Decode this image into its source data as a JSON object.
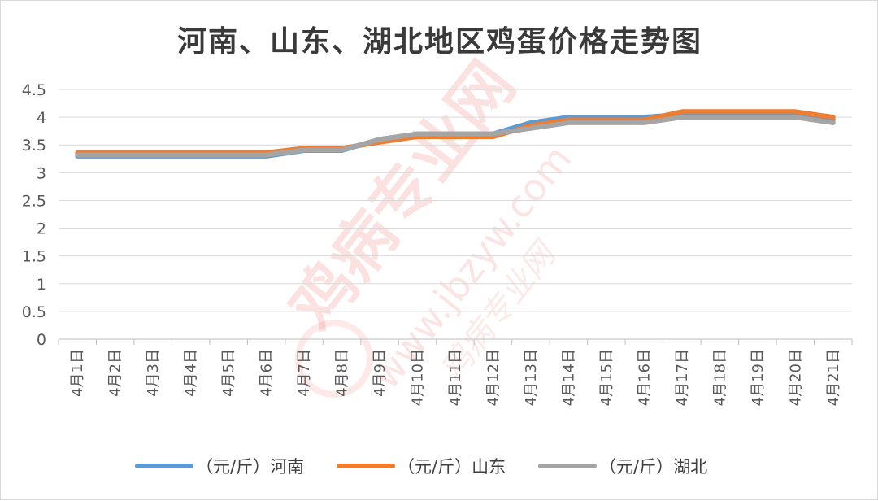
{
  "chart_data": {
    "type": "line",
    "title": "河南、山东、湖北地区鸡蛋价格走势图",
    "categories": [
      "4月1日",
      "4月2日",
      "4月3日",
      "4月4日",
      "4月5日",
      "4月6日",
      "4月7日",
      "4月8日",
      "4月9日",
      "4月10日",
      "4月11日",
      "4月12日",
      "4月13日",
      "4月14日",
      "4月15日",
      "4月16日",
      "4月17日",
      "4月18日",
      "4月19日",
      "4月20日",
      "4月21日"
    ],
    "yticks": [
      "0",
      "0.5",
      "1",
      "1.5",
      "2",
      "2.5",
      "3",
      "3.5",
      "4",
      "4.5"
    ],
    "ylim": [
      0,
      4.5
    ],
    "grid": true,
    "legend_position": "bottom",
    "series": [
      {
        "name": "（元/斤）河南",
        "color": "#5b9bd5",
        "values": [
          3.3,
          3.3,
          3.3,
          3.3,
          3.3,
          3.3,
          3.4,
          3.4,
          3.6,
          3.7,
          3.7,
          3.7,
          3.9,
          4.0,
          4.0,
          4.0,
          4.05,
          4.05,
          4.05,
          4.05,
          3.95
        ]
      },
      {
        "name": "（元/斤）山东",
        "color": "#ed7d31",
        "values": [
          3.36,
          3.36,
          3.36,
          3.36,
          3.36,
          3.36,
          3.44,
          3.44,
          3.55,
          3.65,
          3.65,
          3.65,
          3.85,
          3.95,
          3.95,
          3.95,
          4.1,
          4.1,
          4.1,
          4.1,
          4.0
        ]
      },
      {
        "name": "（元/斤）湖北",
        "color": "#a5a5a5",
        "values": [
          3.32,
          3.32,
          3.32,
          3.32,
          3.32,
          3.32,
          3.41,
          3.41,
          3.6,
          3.7,
          3.7,
          3.7,
          3.8,
          3.9,
          3.9,
          3.9,
          4.0,
          4.0,
          4.0,
          4.0,
          3.9
        ]
      }
    ]
  },
  "watermark": {
    "brand": "鸡病专业网",
    "url": "www.jbzyw.com",
    "signature": "鸡病专业网",
    "color": "#e8554e"
  }
}
